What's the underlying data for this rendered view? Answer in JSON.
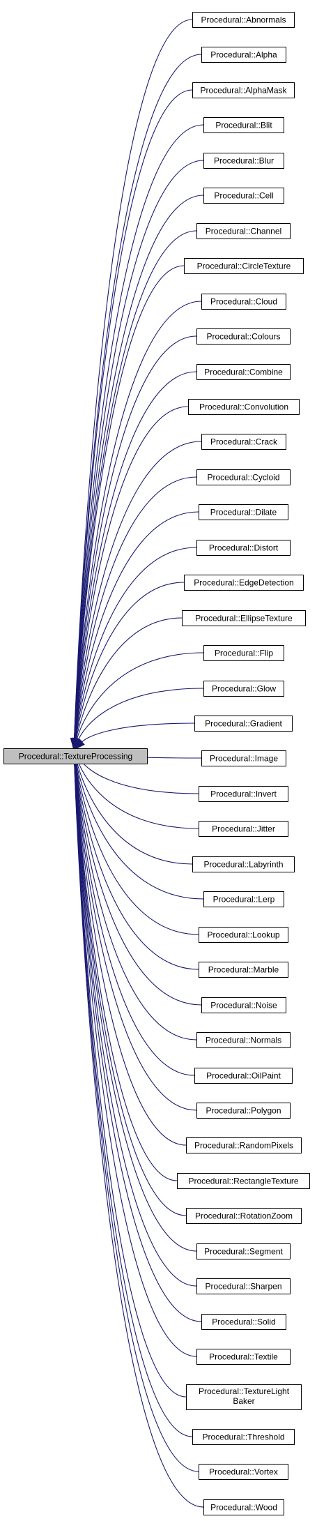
{
  "colors": {
    "edge": "#191970",
    "node_border": "#000000",
    "node_fill": "#ffffff",
    "base_fill": "#bfbfbf",
    "text": "#000000"
  },
  "diagram": {
    "type": "inheritance-graph",
    "base": {
      "label": "Procedural::TextureProcessing"
    },
    "derived": [
      {
        "label": "Procedural::Abnormals"
      },
      {
        "label": "Procedural::Alpha"
      },
      {
        "label": "Procedural::AlphaMask"
      },
      {
        "label": "Procedural::Blit"
      },
      {
        "label": "Procedural::Blur"
      },
      {
        "label": "Procedural::Cell"
      },
      {
        "label": "Procedural::Channel"
      },
      {
        "label": "Procedural::CircleTexture"
      },
      {
        "label": "Procedural::Cloud"
      },
      {
        "label": "Procedural::Colours"
      },
      {
        "label": "Procedural::Combine"
      },
      {
        "label": "Procedural::Convolution"
      },
      {
        "label": "Procedural::Crack"
      },
      {
        "label": "Procedural::Cycloid"
      },
      {
        "label": "Procedural::Dilate"
      },
      {
        "label": "Procedural::Distort"
      },
      {
        "label": "Procedural::EdgeDetection"
      },
      {
        "label": "Procedural::EllipseTexture"
      },
      {
        "label": "Procedural::Flip"
      },
      {
        "label": "Procedural::Glow"
      },
      {
        "label": "Procedural::Gradient"
      },
      {
        "label": "Procedural::Image"
      },
      {
        "label": "Procedural::Invert"
      },
      {
        "label": "Procedural::Jitter"
      },
      {
        "label": "Procedural::Labyrinth"
      },
      {
        "label": "Procedural::Lerp"
      },
      {
        "label": "Procedural::Lookup"
      },
      {
        "label": "Procedural::Marble"
      },
      {
        "label": "Procedural::Noise"
      },
      {
        "label": "Procedural::Normals"
      },
      {
        "label": "Procedural::OilPaint"
      },
      {
        "label": "Procedural::Polygon"
      },
      {
        "label": "Procedural::RandomPixels"
      },
      {
        "label": "Procedural::RectangleTexture"
      },
      {
        "label": "Procedural::RotationZoom"
      },
      {
        "label": "Procedural::Segment"
      },
      {
        "label": "Procedural::Sharpen"
      },
      {
        "label": "Procedural::Solid"
      },
      {
        "label": "Procedural::Textile"
      },
      {
        "label": "Procedural::TextureLight Baker",
        "lines": [
          "Procedural::TextureLight",
          "Baker"
        ]
      },
      {
        "label": "Procedural::Threshold"
      },
      {
        "label": "Procedural::Vortex"
      },
      {
        "label": "Procedural::Wood"
      }
    ]
  }
}
